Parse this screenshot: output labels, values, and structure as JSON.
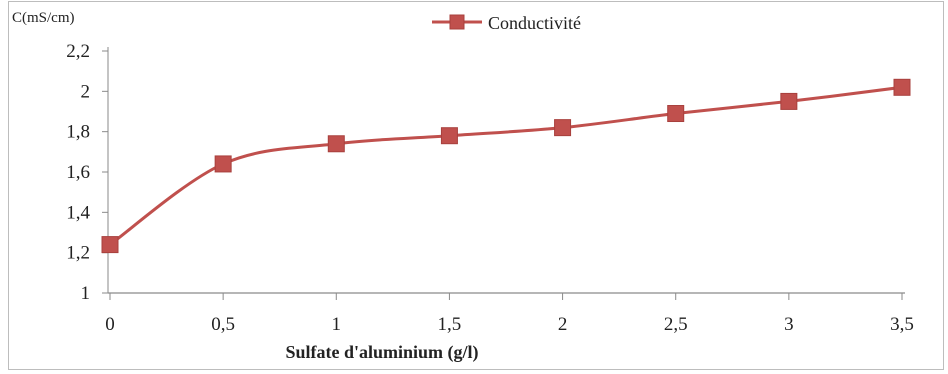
{
  "chart_data": {
    "type": "line",
    "xlabel": "Sulfate d'aluminium (g/l)",
    "ylabel": "C(mS/cm)",
    "x": [
      0,
      0.5,
      1,
      1.5,
      2,
      2.5,
      3,
      3.5
    ],
    "xtick_labels": [
      "0",
      "0,5",
      "1",
      "1,5",
      "2",
      "2,5",
      "3",
      "3,5"
    ],
    "xlim": [
      0,
      3.5
    ],
    "yticks": [
      1,
      1.2,
      1.4,
      1.6,
      1.8,
      2,
      2.2
    ],
    "ytick_labels": [
      "1",
      "1,2",
      "1,4",
      "1,6",
      "1,8",
      "2",
      "2,2"
    ],
    "ylim": [
      1,
      2.2
    ],
    "grid": false,
    "legend": "top-center",
    "series": [
      {
        "name": "Conductivité",
        "values": [
          1.24,
          1.64,
          1.74,
          1.78,
          1.82,
          1.89,
          1.95,
          2.02
        ],
        "color": "#c0504d",
        "marker": "square",
        "smooth": true
      }
    ]
  }
}
